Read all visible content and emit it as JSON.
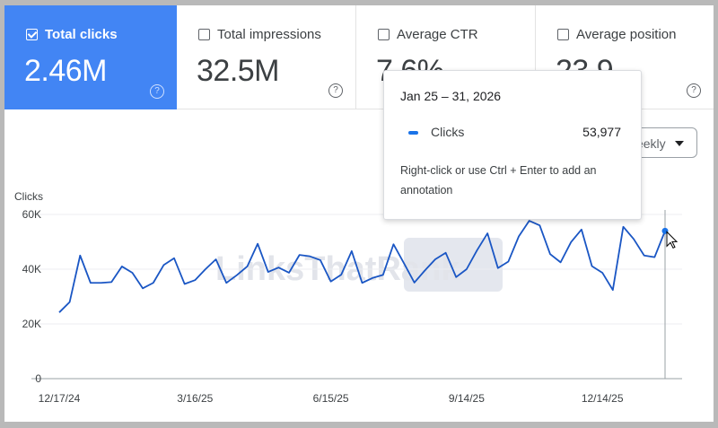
{
  "metrics": [
    {
      "label": "Total clicks",
      "value": "2.46M",
      "checked": true
    },
    {
      "label": "Total impressions",
      "value": "32.5M",
      "checked": false
    },
    {
      "label": "Average CTR",
      "value": "7.6%",
      "checked": false
    },
    {
      "label": "Average position",
      "value": "23.9",
      "checked": false
    }
  ],
  "help_glyph": "?",
  "dropdown": {
    "selected": "Weekly"
  },
  "tooltip": {
    "date": "Jan 25 – 31, 2026",
    "series": "Clicks",
    "value": "53,977",
    "hint": "Right-click or use Ctrl + Enter to add an annotation"
  },
  "watermark": "LinksThatRank",
  "colors": {
    "accent": "#4285f4",
    "line": "#1a56c4"
  },
  "chart_data": {
    "type": "line",
    "ylabel": "Clicks",
    "ylim": [
      0,
      60000
    ],
    "yticks": [
      {
        "v": 60000,
        "label": "60K"
      },
      {
        "v": 40000,
        "label": "40K"
      },
      {
        "v": 20000,
        "label": "20K"
      },
      {
        "v": 0,
        "label": "0"
      }
    ],
    "xticks": [
      {
        "i": 0,
        "label": "12/17/24"
      },
      {
        "i": 13,
        "label": "3/16/25"
      },
      {
        "i": 26,
        "label": "6/15/25"
      },
      {
        "i": 39,
        "label": "9/14/25"
      },
      {
        "i": 52,
        "label": "12/14/25"
      }
    ],
    "grid": true,
    "series": [
      {
        "name": "Clicks",
        "values": [
          24200,
          28000,
          45000,
          35000,
          35000,
          35300,
          41000,
          38700,
          33000,
          35000,
          41500,
          44000,
          34600,
          36000,
          40000,
          43600,
          35000,
          37800,
          41000,
          49300,
          39000,
          40600,
          38700,
          45200,
          44700,
          43300,
          35500,
          38000,
          46600,
          35000,
          36800,
          37900,
          49100,
          42200,
          35100,
          39500,
          43600,
          46000,
          37100,
          40000,
          46900,
          53100,
          40400,
          42800,
          52000,
          57700,
          56000,
          45500,
          42500,
          49900,
          54500,
          41100,
          38700,
          32400,
          55500,
          51000,
          45000,
          44400,
          53977
        ]
      }
    ],
    "highlight_index": 58
  }
}
